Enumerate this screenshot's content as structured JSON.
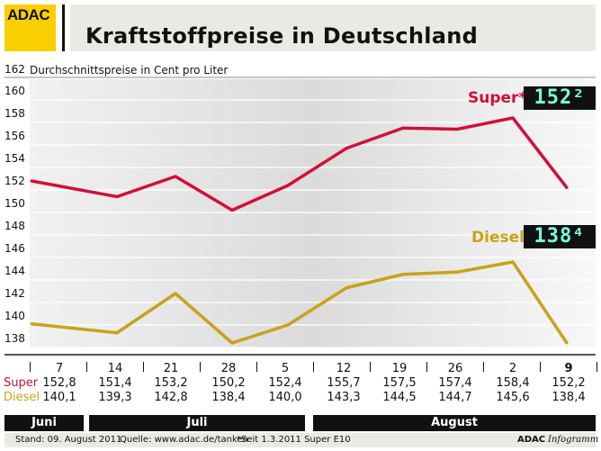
{
  "header": {
    "logo": "ADAC",
    "title": "Kraftstoffpreise in Deutschland"
  },
  "footer": {
    "stand": "Stand: 09. August 2011",
    "quelle": "Quelle: www.adac.de/tanken",
    "note": "*Seit 1.3.2011 Super E10",
    "brand_bold": "ADAC",
    "brand_italic": "Infogramm"
  },
  "months": [
    "Juni",
    "Juli",
    "August"
  ],
  "displays": {
    "super": "152²",
    "diesel": "138⁴"
  },
  "chart_data": {
    "type": "line",
    "title": "",
    "ylabel": "Durchschnittspreise in Cent pro Liter",
    "ylim": [
      138,
      162
    ],
    "yticks": [
      138,
      140,
      142,
      144,
      146,
      148,
      150,
      152,
      154,
      156,
      158,
      160,
      162
    ],
    "grid": true,
    "categories": [
      "7",
      "14",
      "21",
      "28",
      "5",
      "12",
      "19",
      "26",
      "2",
      "9"
    ],
    "row_labels": {
      "super": "Super",
      "diesel": "Diesel"
    },
    "series": [
      {
        "name": "Super*",
        "color": "#d0103a",
        "values": [
          152.8,
          151.4,
          153.2,
          150.2,
          152.4,
          155.7,
          157.5,
          157.4,
          158.4,
          152.2
        ],
        "labels": [
          "152,8",
          "151,4",
          "153,2",
          "150,2",
          "152,4",
          "155,7",
          "157,5",
          "157,4",
          "158,4",
          "152,2"
        ]
      },
      {
        "name": "Diesel",
        "color": "#c9a21a",
        "values": [
          140.1,
          139.3,
          142.8,
          138.4,
          140.0,
          143.3,
          144.5,
          144.7,
          145.6,
          138.4
        ],
        "labels": [
          "140,1",
          "139,3",
          "142,8",
          "138,4",
          "140,0",
          "143,3",
          "144,5",
          "144,7",
          "145,6",
          "138,4"
        ]
      }
    ]
  }
}
